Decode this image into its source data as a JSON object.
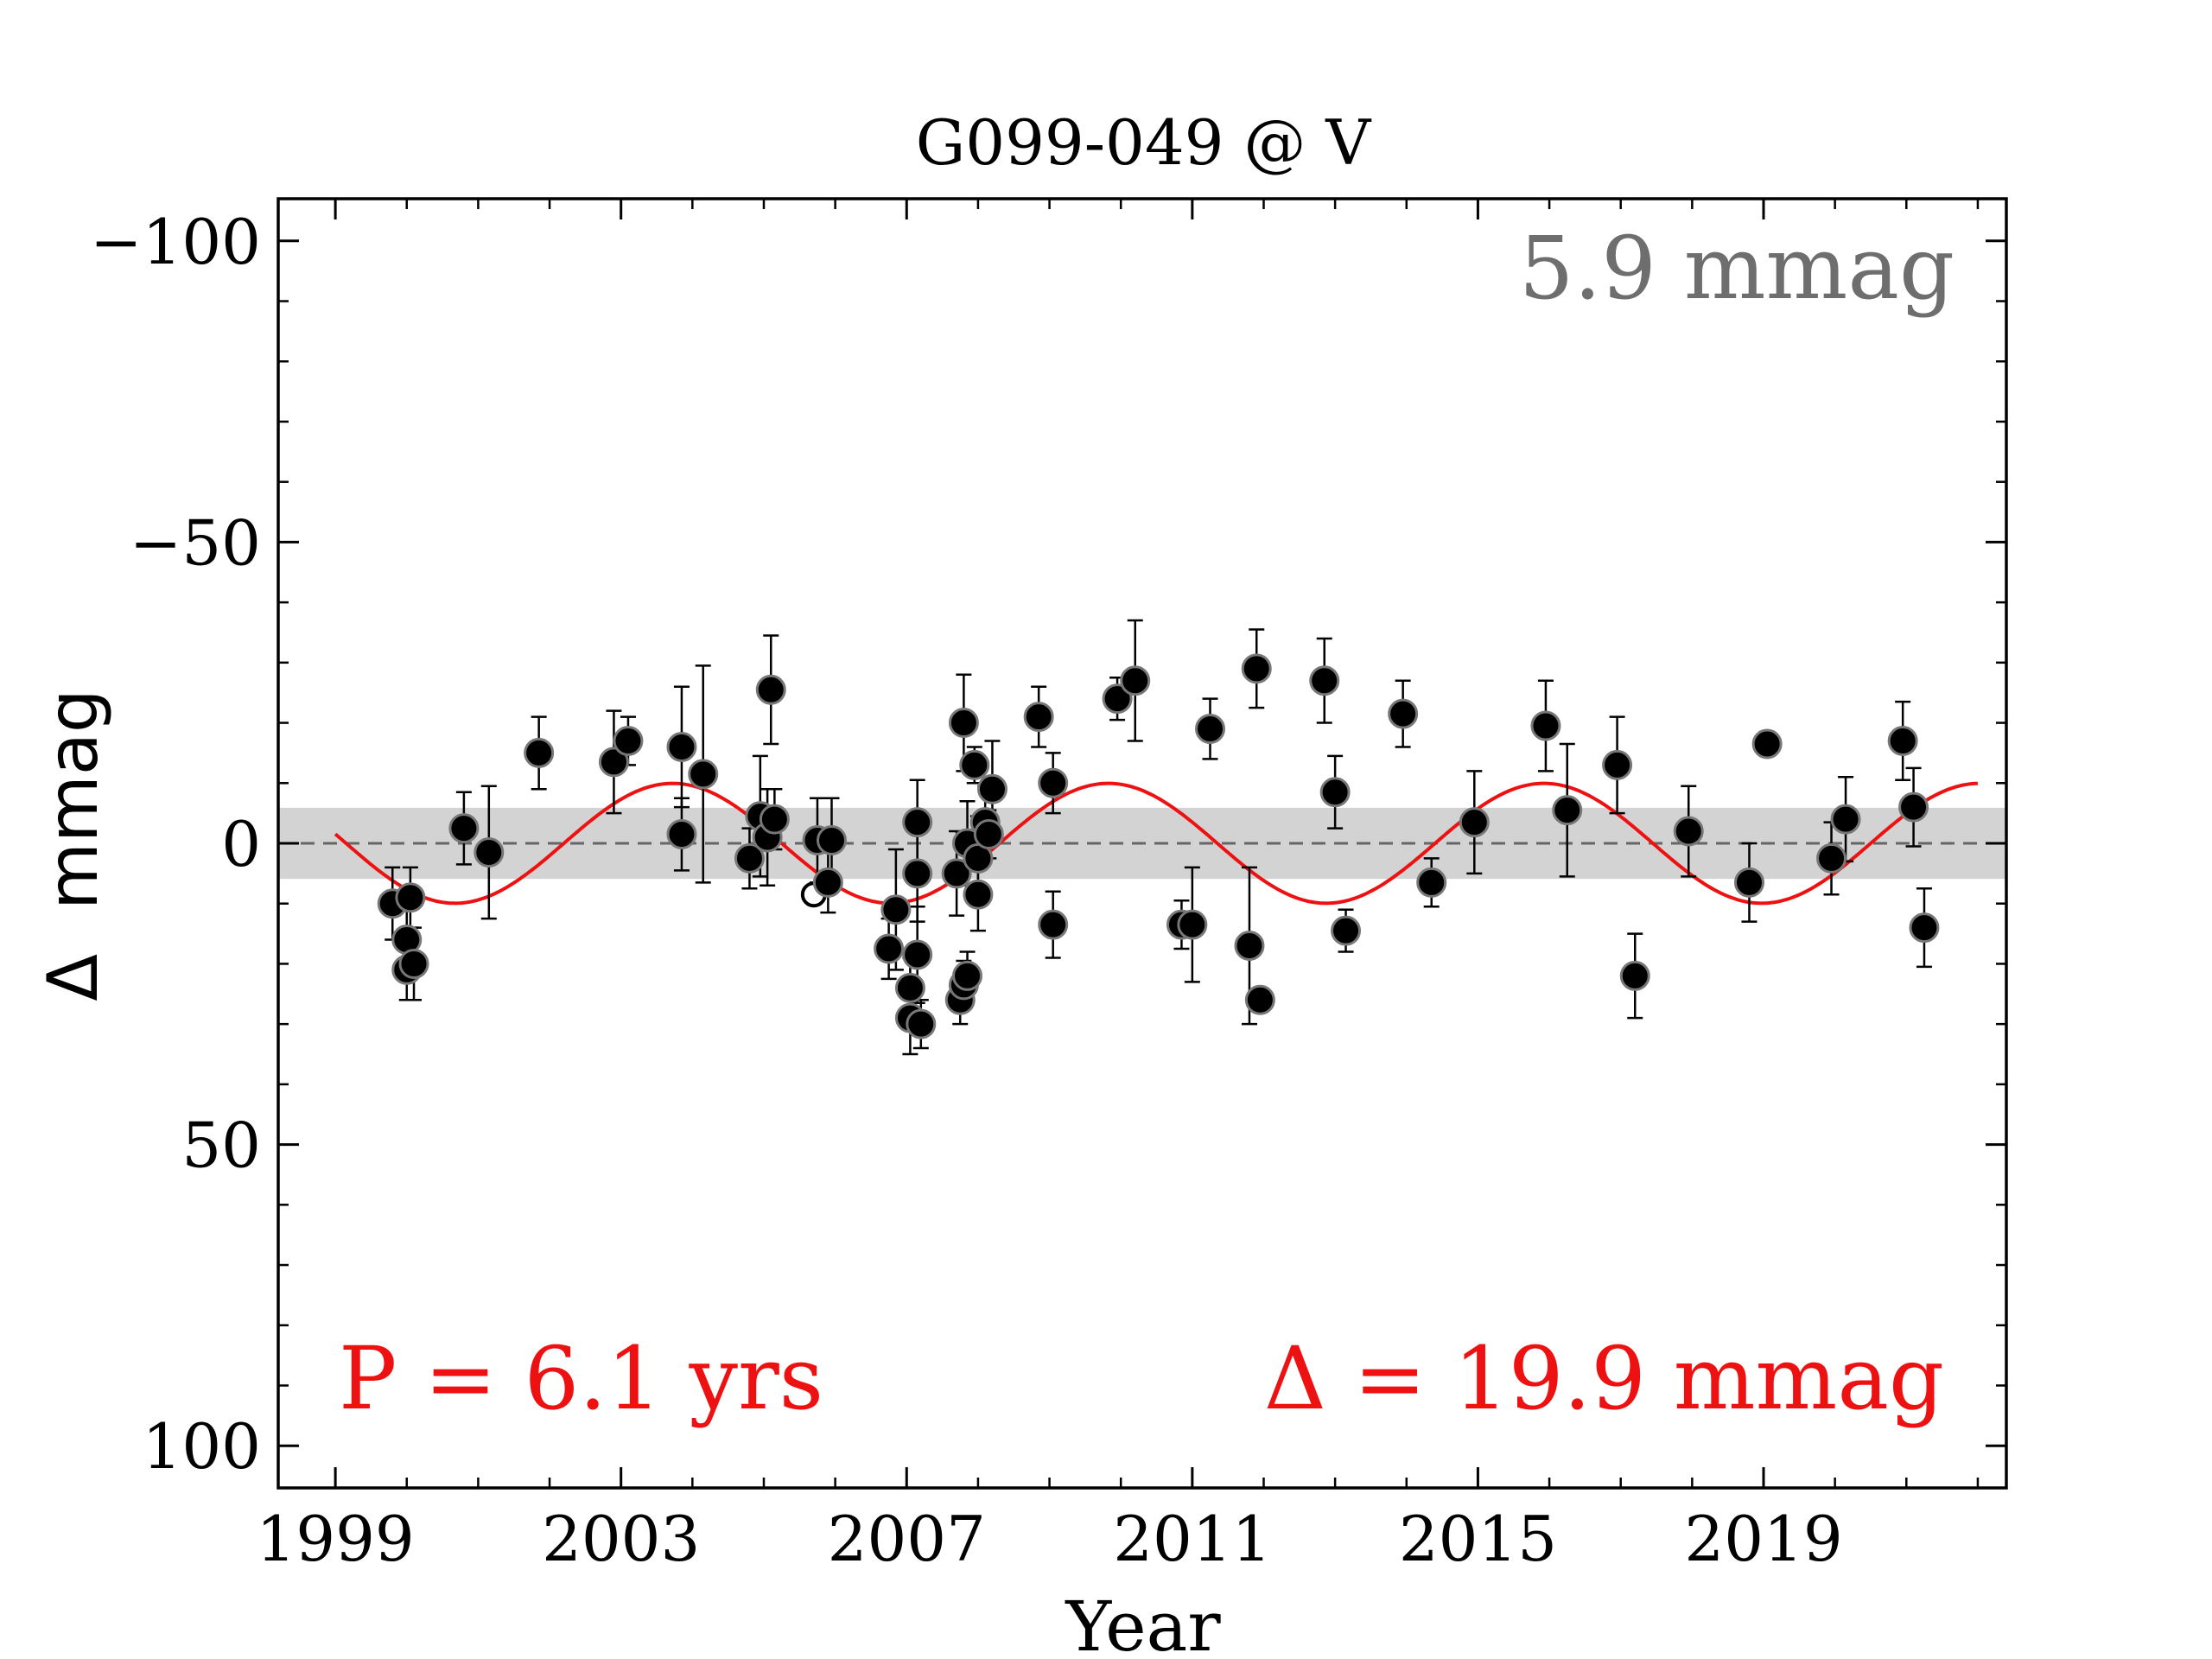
{
  "chart_data": {
    "type": "scatter",
    "title": "G099-049 @ V",
    "xlabel": "Year",
    "ylabel": "Δ  mmag",
    "xlim": [
      1998.2,
      2022.4
    ],
    "ylim": [
      107,
      -107
    ],
    "y_inverted": true,
    "x_ticks": [
      1999,
      2003,
      2007,
      2011,
      2015,
      2019
    ],
    "x_tick_labels": [
      "1999",
      "2003",
      "2007",
      "2011",
      "2015",
      "2019"
    ],
    "y_ticks": [
      -100,
      -50,
      0,
      50,
      100
    ],
    "y_tick_labels": [
      "−100",
      "−50",
      "0",
      "50",
      "100"
    ],
    "annotations": {
      "rms": "5.9 mmag",
      "period": "P = 6.1 yrs",
      "amplitude": "Δ = 19.9 mmag"
    },
    "band": {
      "low": -5.9,
      "high": 5.9
    },
    "fit": {
      "period": 6.1,
      "amplitude": 9.95,
      "phase_year": 2002.2,
      "x_start": 1999.0,
      "x_end": 2022.0
    },
    "colors": {
      "fit": "#ee1111",
      "band": "#d3d3d3",
      "points": "#000000",
      "rms_text": "#6e6e6e"
    },
    "points": [
      {
        "x": 1999.8,
        "y": 10,
        "err": 6
      },
      {
        "x": 2000.0,
        "y": 16,
        "err": 5
      },
      {
        "x": 2000.0,
        "y": 21,
        "err": 5
      },
      {
        "x": 2000.1,
        "y": 20,
        "err": 6
      },
      {
        "x": 2000.05,
        "y": 9,
        "err": 5
      },
      {
        "x": 2000.8,
        "y": -2.5,
        "err": 6
      },
      {
        "x": 2001.15,
        "y": 1.5,
        "err": 11
      },
      {
        "x": 2001.85,
        "y": -15,
        "err": 6
      },
      {
        "x": 2002.9,
        "y": -13.5,
        "err": 8.5
      },
      {
        "x": 2003.1,
        "y": -17,
        "err": 4
      },
      {
        "x": 2003.85,
        "y": -1.5,
        "err": 6
      },
      {
        "x": 2003.85,
        "y": -16,
        "err": 10
      },
      {
        "x": 2004.15,
        "y": -11.5,
        "err": 18
      },
      {
        "x": 2004.8,
        "y": 2.5,
        "err": 5
      },
      {
        "x": 2004.95,
        "y": -4.5,
        "err": 10
      },
      {
        "x": 2005.05,
        "y": -1,
        "err": 8
      },
      {
        "x": 2005.1,
        "y": -25.5,
        "err": 9
      },
      {
        "x": 2005.15,
        "y": -4,
        "err": 5
      },
      {
        "x": 2005.7,
        "y": 8.5,
        "err": 0,
        "open": true
      },
      {
        "x": 2005.75,
        "y": -0.5,
        "err": 7
      },
      {
        "x": 2005.9,
        "y": 6.5,
        "err": 5
      },
      {
        "x": 2005.95,
        "y": -0.5,
        "err": 7
      },
      {
        "x": 2006.75,
        "y": 17.5,
        "err": 5
      },
      {
        "x": 2006.85,
        "y": 11,
        "err": 10
      },
      {
        "x": 2007.05,
        "y": 24,
        "err": 5
      },
      {
        "x": 2007.05,
        "y": 29,
        "err": 6
      },
      {
        "x": 2007.15,
        "y": -3.5,
        "err": 7
      },
      {
        "x": 2007.15,
        "y": 5,
        "err": 8
      },
      {
        "x": 2007.15,
        "y": 18.5,
        "err": 8
      },
      {
        "x": 2007.2,
        "y": 30,
        "err": 4
      },
      {
        "x": 2007.7,
        "y": 5,
        "err": 7
      },
      {
        "x": 2007.75,
        "y": 26,
        "err": 4
      },
      {
        "x": 2007.8,
        "y": 23.5,
        "err": 4
      },
      {
        "x": 2007.8,
        "y": -20,
        "err": 8
      },
      {
        "x": 2007.85,
        "y": 22,
        "err": 4
      },
      {
        "x": 2007.85,
        "y": 0,
        "err": 7
      },
      {
        "x": 2007.95,
        "y": -13,
        "err": 3
      },
      {
        "x": 2008.0,
        "y": 8.5,
        "err": 6
      },
      {
        "x": 2008.0,
        "y": 2.5,
        "err": 7
      },
      {
        "x": 2008.1,
        "y": -3.5,
        "err": 6
      },
      {
        "x": 2008.15,
        "y": -1.5,
        "err": 4
      },
      {
        "x": 2008.2,
        "y": -9,
        "err": 8
      },
      {
        "x": 2008.85,
        "y": -21,
        "err": 5
      },
      {
        "x": 2009.05,
        "y": -10,
        "err": 5
      },
      {
        "x": 2009.05,
        "y": 13.5,
        "err": 5.5
      },
      {
        "x": 2009.95,
        "y": -24,
        "err": 3.5
      },
      {
        "x": 2010.2,
        "y": -27,
        "err": 10
      },
      {
        "x": 2010.85,
        "y": 13.5,
        "err": 4
      },
      {
        "x": 2011.0,
        "y": 13.5,
        "err": 9.5
      },
      {
        "x": 2011.25,
        "y": -19,
        "err": 5
      },
      {
        "x": 2011.8,
        "y": 17,
        "err": 13
      },
      {
        "x": 2011.9,
        "y": -29,
        "err": 6.5
      },
      {
        "x": 2011.95,
        "y": 26,
        "err": 2
      },
      {
        "x": 2012.85,
        "y": -27,
        "err": 7
      },
      {
        "x": 2013.0,
        "y": -8.5,
        "err": 6
      },
      {
        "x": 2013.15,
        "y": 14.5,
        "err": 3.5
      },
      {
        "x": 2013.95,
        "y": -21.5,
        "err": 5.5
      },
      {
        "x": 2014.35,
        "y": 6.5,
        "err": 4
      },
      {
        "x": 2014.95,
        "y": -3.5,
        "err": 8.5
      },
      {
        "x": 2015.95,
        "y": -19.5,
        "err": 7.5
      },
      {
        "x": 2016.25,
        "y": -5.5,
        "err": 11
      },
      {
        "x": 2016.95,
        "y": -13,
        "err": 8
      },
      {
        "x": 2017.2,
        "y": 22,
        "err": 7
      },
      {
        "x": 2017.95,
        "y": -2,
        "err": 7.5
      },
      {
        "x": 2018.8,
        "y": 6.5,
        "err": 6.5
      },
      {
        "x": 2019.05,
        "y": -16.5,
        "err": 2
      },
      {
        "x": 2019.95,
        "y": 2.5,
        "err": 6
      },
      {
        "x": 2020.15,
        "y": -4,
        "err": 7
      },
      {
        "x": 2020.95,
        "y": -17,
        "err": 6.5
      },
      {
        "x": 2021.1,
        "y": -6,
        "err": 6.5
      },
      {
        "x": 2021.25,
        "y": 14,
        "err": 6.5
      }
    ]
  }
}
